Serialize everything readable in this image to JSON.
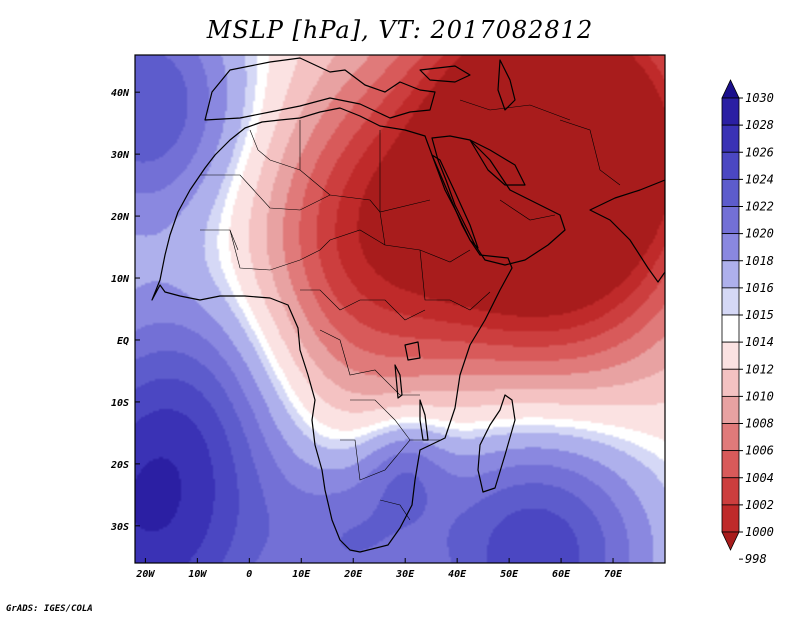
{
  "title": "MSLP [hPa], VT: 2017082812",
  "credit": "GrADS: IGES/COLA",
  "map": {
    "lon_range": [
      -22,
      80
    ],
    "lat_range": [
      -36,
      46
    ],
    "x_ticks": [
      {
        "lon": -20,
        "label": "20W"
      },
      {
        "lon": -10,
        "label": "10W"
      },
      {
        "lon": 0,
        "label": "0"
      },
      {
        "lon": 10,
        "label": "10E"
      },
      {
        "lon": 20,
        "label": "20E"
      },
      {
        "lon": 30,
        "label": "30E"
      },
      {
        "lon": 40,
        "label": "40E"
      },
      {
        "lon": 50,
        "label": "50E"
      },
      {
        "lon": 60,
        "label": "60E"
      },
      {
        "lon": 70,
        "label": "70E"
      }
    ],
    "y_ticks": [
      {
        "lat": 40,
        "label": "40N"
      },
      {
        "lat": 30,
        "label": "30N"
      },
      {
        "lat": 20,
        "label": "20N"
      },
      {
        "lat": 10,
        "label": "10N"
      },
      {
        "lat": 0,
        "label": "EQ"
      },
      {
        "lat": -10,
        "label": "10S"
      },
      {
        "lat": -20,
        "label": "20S"
      },
      {
        "lat": -30,
        "label": "30S"
      }
    ]
  },
  "colorbar": {
    "levels": [
      "1030",
      "1028",
      "1026",
      "1024",
      "1022",
      "1020",
      "1018",
      "1016",
      "1015",
      "1014",
      "1012",
      "1010",
      "1008",
      "1006",
      "1004",
      "1002",
      "1000",
      "998"
    ],
    "colors": [
      "#1a0f8c",
      "#2b1fa3",
      "#3a32b5",
      "#4b47c2",
      "#5d5ccc",
      "#7370d6",
      "#8a88e0",
      "#aeb0ec",
      "#d5d8f6",
      "#ffffff",
      "#fbe2e2",
      "#f4c2c2",
      "#e8a2a2",
      "#e07a7a",
      "#d85a5a",
      "#cc3e3e",
      "#bf2a2a",
      "#a81c1c"
    ]
  },
  "field": {
    "background": 1013,
    "centers": [
      {
        "lon": 45,
        "lat": 22,
        "amp": -13,
        "r": 20
      },
      {
        "lon": 68,
        "lat": 30,
        "amp": -13,
        "r": 16
      },
      {
        "lon": 55,
        "lat": 38,
        "amp": -9,
        "r": 14
      },
      {
        "lon": 20,
        "lat": 18,
        "amp": -6,
        "r": 14
      },
      {
        "lon": 15,
        "lat": -5,
        "amp": -3,
        "r": 14
      },
      {
        "lon": 62,
        "lat": 2,
        "amp": -4,
        "r": 16
      },
      {
        "lon": -20,
        "lat": -30,
        "amp": 14,
        "r": 20
      },
      {
        "lon": 55,
        "lat": -33,
        "amp": 13,
        "r": 17
      },
      {
        "lon": 30,
        "lat": -20,
        "amp": 5,
        "r": 6
      },
      {
        "lon": -20,
        "lat": 38,
        "amp": 11,
        "r": 14
      },
      {
        "lon": -10,
        "lat": -8,
        "amp": 5,
        "r": 14
      },
      {
        "lon": 20,
        "lat": -32,
        "amp": 6,
        "r": 10
      }
    ]
  }
}
